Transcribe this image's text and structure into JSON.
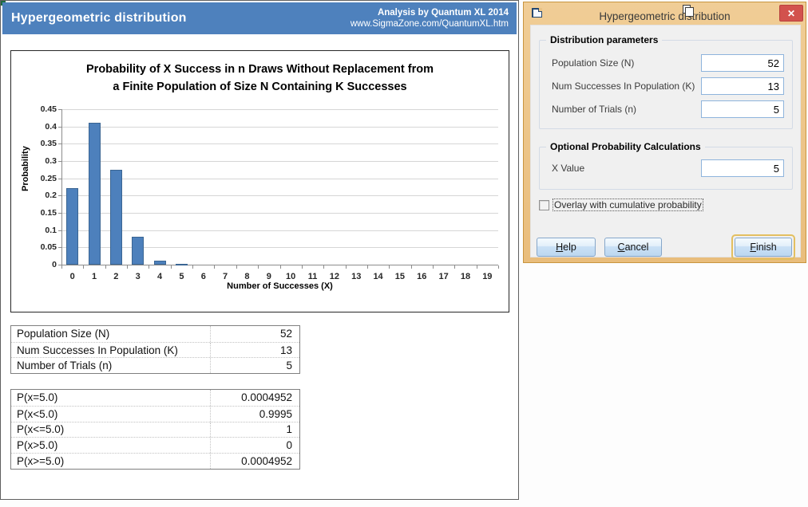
{
  "app": {
    "title": "Hypergeometric distribution",
    "credit_line1": "Analysis by Quantum XL 2014",
    "credit_line2": "www.SigmaZone.com/QuantumXL.htm"
  },
  "chart_data": {
    "type": "bar",
    "title_line1": "Probability of X Success in n Draws Without Replacement from",
    "title_line2": "a Finite Population of Size N Containing K Successes",
    "xlabel": "Number of Successes (X)",
    "ylabel": "Probability",
    "categories": [
      "0",
      "1",
      "2",
      "3",
      "4",
      "5",
      "6",
      "7",
      "8",
      "9",
      "10",
      "11",
      "12",
      "13",
      "14",
      "15",
      "16",
      "17",
      "18",
      "19"
    ],
    "values": [
      0.2215,
      0.4114,
      0.2743,
      0.0815,
      0.0107,
      0.0005,
      0,
      0,
      0,
      0,
      0,
      0,
      0,
      0,
      0,
      0,
      0,
      0,
      0,
      0
    ],
    "ylim": [
      0,
      0.45
    ],
    "yticks": [
      "0",
      "0.05",
      "0.1",
      "0.15",
      "0.2",
      "0.25",
      "0.3",
      "0.35",
      "0.4",
      "0.45"
    ],
    "grid": true,
    "legend": "none",
    "bar_color": "#4d80bc",
    "bar_border": "#3a6593"
  },
  "params_table": {
    "rows": [
      {
        "label": "Population Size (N)",
        "value": "52"
      },
      {
        "label": "Num Successes In Population (K)",
        "value": "13"
      },
      {
        "label": "Number of Trials (n)",
        "value": "5"
      }
    ]
  },
  "prob_table": {
    "rows": [
      {
        "label": "P(x=5.0)",
        "value": "0.0004952"
      },
      {
        "label": "P(x<5.0)",
        "value": "0.9995"
      },
      {
        "label": "P(x<=5.0)",
        "value": "1"
      },
      {
        "label": "P(x>5.0)",
        "value": "0"
      },
      {
        "label": "P(x>=5.0)",
        "value": "0.0004952"
      }
    ]
  },
  "dialog": {
    "title": "Hypergeometric distribution",
    "close_glyph": "✕",
    "group1": {
      "title": "Distribution parameters",
      "fields": [
        {
          "label": "Population Size (N)",
          "value": "52"
        },
        {
          "label": "Num Successes In Population (K)",
          "value": "13"
        },
        {
          "label": "Number of Trials (n)",
          "value": "5"
        }
      ]
    },
    "group2": {
      "title": "Optional Probability Calculations",
      "fields": [
        {
          "label": "X Value",
          "value": "5"
        }
      ]
    },
    "checkbox": {
      "label": "Overlay with cumulative probability",
      "checked": false
    },
    "buttons": [
      {
        "label": "Help"
      },
      {
        "label": "Cancel"
      },
      {
        "label": "Finish"
      }
    ]
  },
  "colors": {
    "header_blue": "#4e81bd",
    "bar_fill": "#4d80bc",
    "bar_border": "#3a6593",
    "dialog_frame": "#ecc488",
    "dialog_content": "#f0f0f0",
    "close_red": "#d2524d",
    "finish_focus_gold": "#e3bf60",
    "button_face": "#cde2f6"
  }
}
